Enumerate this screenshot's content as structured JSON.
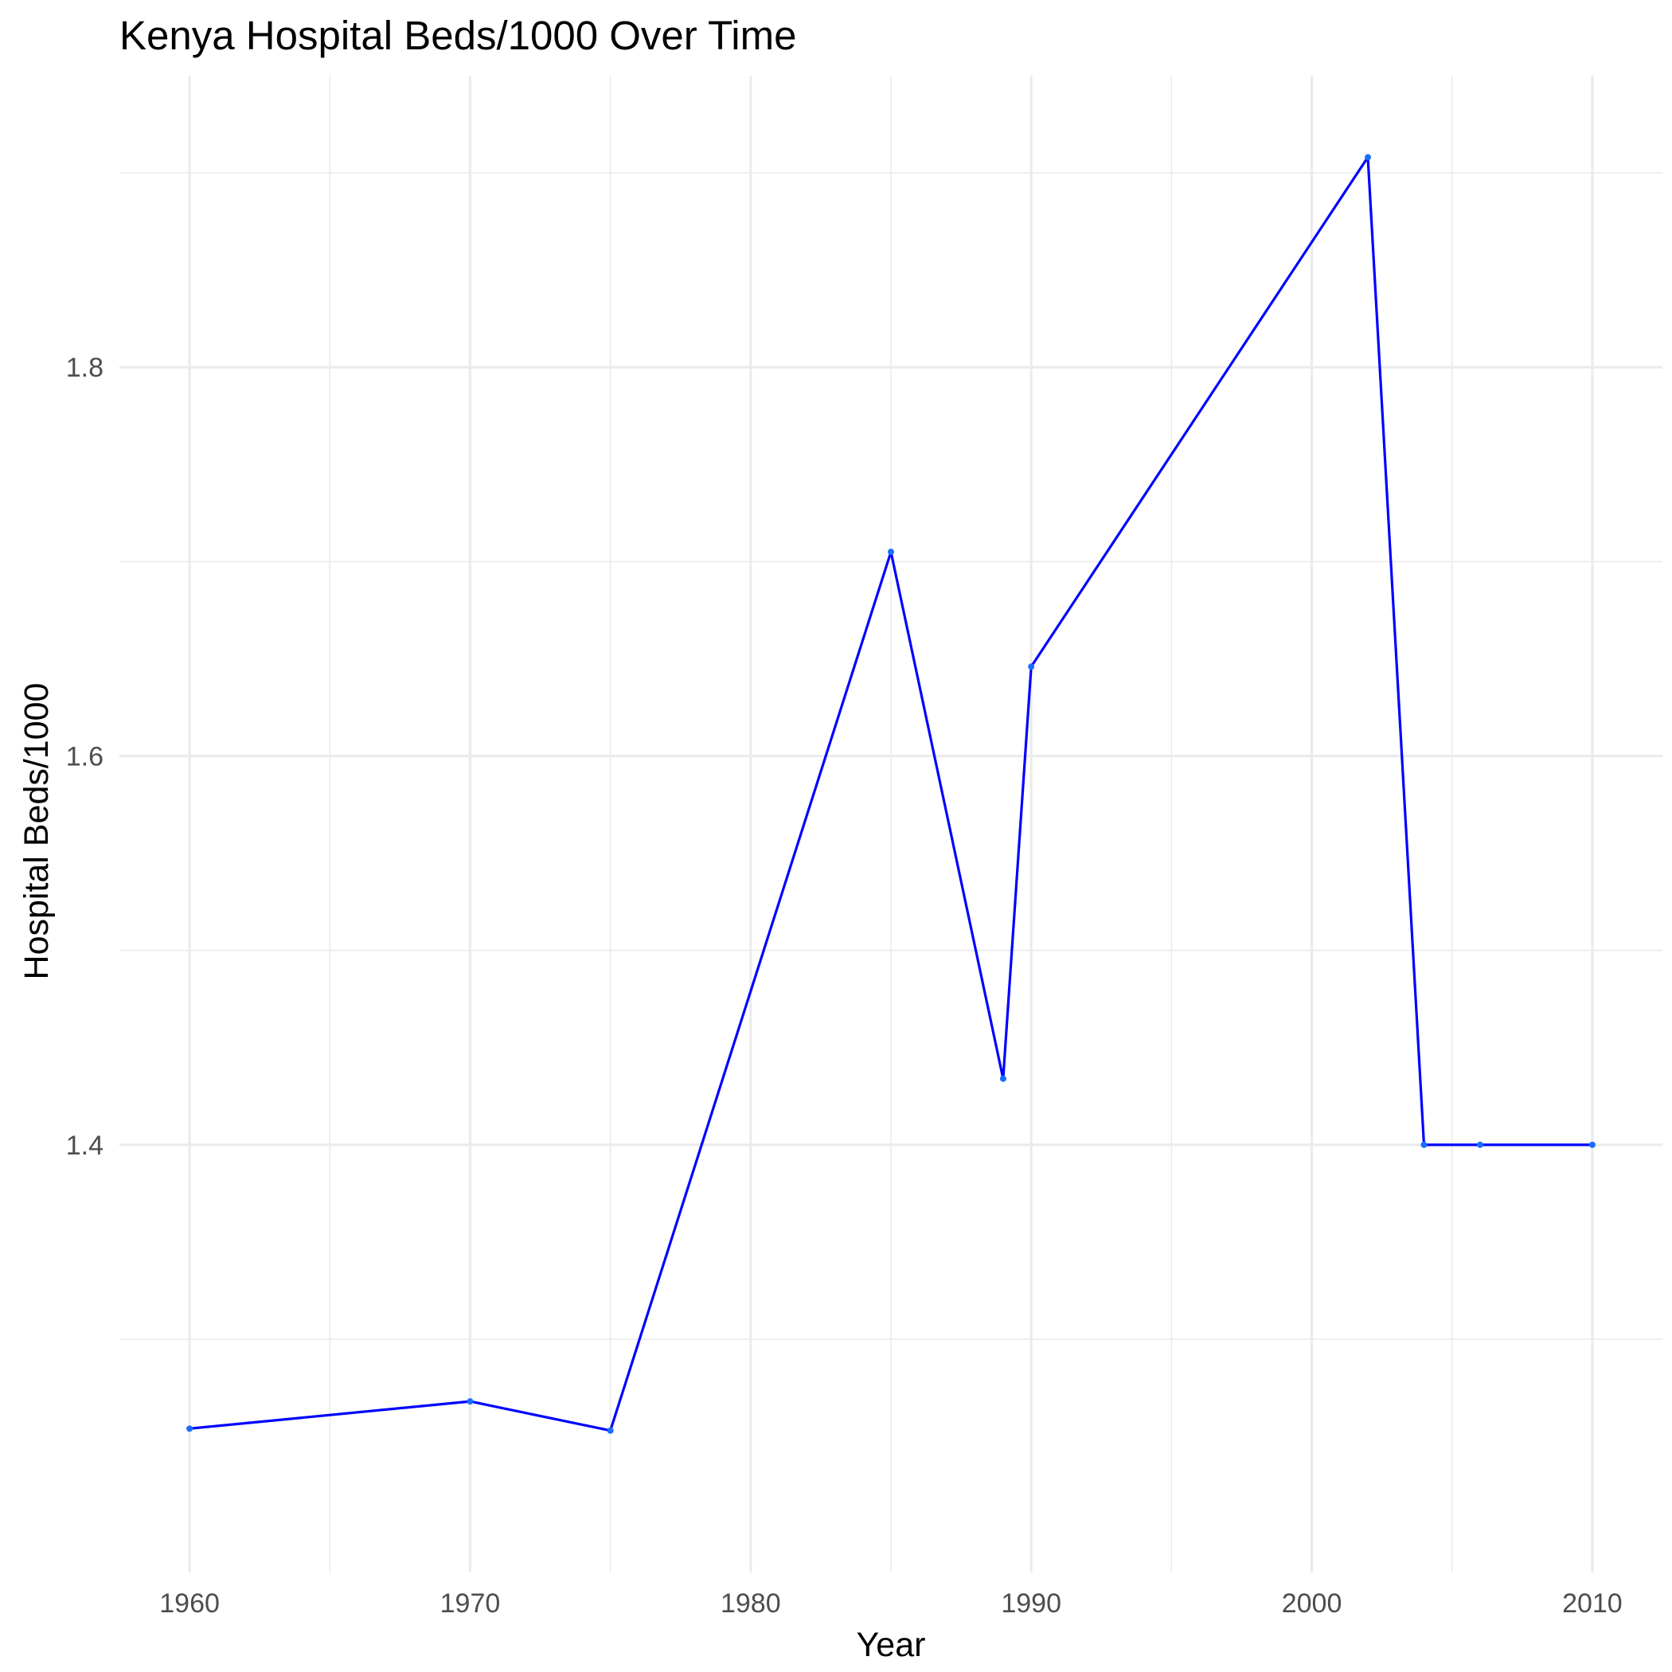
{
  "chart_data": {
    "type": "line",
    "title": "Kenya Hospital Beds/1000 Over Time",
    "xlabel": "Year",
    "ylabel": "Hospital Beds/1000",
    "x": [
      1960,
      1970,
      1975,
      1985,
      1989,
      1990,
      2002,
      2004,
      2006,
      2010
    ],
    "series": [
      {
        "values": [
          1.254,
          1.268,
          1.253,
          1.705,
          1.434,
          1.646,
          1.908,
          1.4,
          1.4,
          1.4
        ]
      }
    ],
    "xlim": [
      1957.5,
      2012.5
    ],
    "ylim": [
      1.18,
      1.95
    ],
    "x_ticks": [
      1960,
      1970,
      1980,
      1990,
      2000,
      2010
    ],
    "x_tick_labels": [
      "1960",
      "1970",
      "1980",
      "1990",
      "2000",
      "2010"
    ],
    "x_minor_ticks": [
      1965,
      1975,
      1985,
      1995,
      2005
    ],
    "y_ticks": [
      1.4,
      1.6,
      1.8
    ],
    "y_tick_labels": [
      "1.4",
      "1.6",
      "1.8"
    ],
    "y_minor_ticks": [
      1.3,
      1.5,
      1.7,
      1.9
    ],
    "grid": true,
    "legend": "none",
    "colors": {
      "line": "#0000ff",
      "point": "#1a6dff",
      "grid": "#ebebeb",
      "tick_text": "#4d4d4d"
    }
  }
}
